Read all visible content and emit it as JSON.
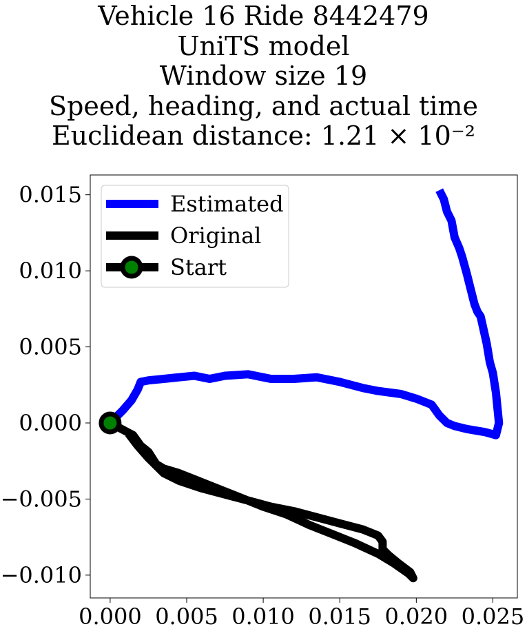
{
  "chart_data": {
    "type": "line",
    "title_lines": [
      "Vehicle 16 Ride 8442479",
      "UniTS model",
      "Window size 19",
      "Speed, heading, and actual time",
      "Euclidean distance: 1.21 × 10⁻²"
    ],
    "xlabel": "",
    "ylabel": "",
    "xlim": [
      -0.0013,
      0.0266
    ],
    "ylim": [
      -0.0115,
      0.0163
    ],
    "x_ticks": [
      0.0,
      0.005,
      0.01,
      0.015,
      0.02,
      0.025
    ],
    "x_tick_labels": [
      "0.000",
      "0.005",
      "0.010",
      "0.015",
      "0.020",
      "0.025"
    ],
    "y_ticks": [
      0.015,
      0.01,
      0.005,
      0.0,
      -0.005,
      -0.01
    ],
    "y_tick_labels": [
      "0.015",
      "0.010",
      "0.005",
      "0.000",
      "−0.005",
      "−0.010"
    ],
    "grid": false,
    "legend_position": "upper-left",
    "series": [
      {
        "name": "Estimated",
        "color": "#0000ff",
        "x": [
          0.0,
          0.0008,
          0.0014,
          0.0018,
          0.002,
          0.0025,
          0.0035,
          0.0045,
          0.0055,
          0.0065,
          0.0075,
          0.009,
          0.0105,
          0.012,
          0.0135,
          0.015,
          0.0165,
          0.0175,
          0.019,
          0.02,
          0.021,
          0.0215,
          0.022,
          0.0225,
          0.0233,
          0.0245,
          0.0252,
          0.0254,
          0.0252,
          0.025,
          0.0248,
          0.0246,
          0.0242,
          0.024,
          0.0238,
          0.0235,
          0.0233,
          0.023,
          0.0228,
          0.0225,
          0.0223,
          0.022,
          0.0218,
          0.0215
        ],
        "y": [
          0.0,
          0.0008,
          0.0015,
          0.0022,
          0.0027,
          0.0028,
          0.0029,
          0.003,
          0.0031,
          0.0029,
          0.0031,
          0.0032,
          0.0029,
          0.0029,
          0.003,
          0.0027,
          0.0023,
          0.0021,
          0.0019,
          0.0016,
          0.0012,
          0.0005,
          0.0,
          -0.0002,
          -0.0004,
          -0.0006,
          -0.0008,
          0.0,
          0.002,
          0.0033,
          0.004,
          0.0052,
          0.007,
          0.0073,
          0.0078,
          0.009,
          0.0098,
          0.0109,
          0.0115,
          0.0122,
          0.0133,
          0.0139,
          0.0147,
          0.0153
        ]
      },
      {
        "name": "Original",
        "color": "#000000",
        "x": [
          0.0,
          0.0015,
          0.002,
          0.0025,
          0.003,
          0.0035,
          0.0045,
          0.0055,
          0.007,
          0.0085,
          0.01,
          0.0115,
          0.013,
          0.0145,
          0.016,
          0.0175,
          0.0185,
          0.0195,
          0.0198,
          0.0196,
          0.0188,
          0.0182,
          0.0178,
          0.0178,
          0.0175,
          0.0165,
          0.015,
          0.0135,
          0.012,
          0.0105,
          0.009,
          0.0075,
          0.006,
          0.0045,
          0.0035,
          0.0025,
          0.0018,
          0.0012
        ],
        "y": [
          0.0,
          -0.0008,
          -0.0015,
          -0.0019,
          -0.0027,
          -0.003,
          -0.0033,
          -0.0037,
          -0.0043,
          -0.0049,
          -0.0055,
          -0.006,
          -0.0067,
          -0.0073,
          -0.0079,
          -0.0086,
          -0.0092,
          -0.0099,
          -0.0102,
          -0.0098,
          -0.0092,
          -0.0087,
          -0.0083,
          -0.0078,
          -0.0074,
          -0.007,
          -0.0066,
          -0.0062,
          -0.0058,
          -0.0055,
          -0.0051,
          -0.0047,
          -0.0043,
          -0.0038,
          -0.0033,
          -0.0023,
          -0.0015,
          -0.0007
        ]
      }
    ],
    "start_point": {
      "name": "Start",
      "x": 0.0,
      "y": 0.0,
      "edge_color": "#000000",
      "face_color": "#008000"
    }
  }
}
